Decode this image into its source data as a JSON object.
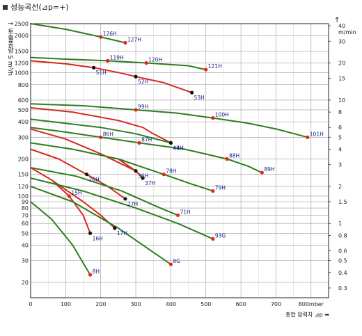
{
  "header": {
    "title": "성능곡선(⊿p=+)",
    "ylabel": "토출풍량 S m³/h",
    "y2label": "m/min",
    "xlabel": "총합 압력차 ⊿p ➡",
    "x_unit": "mmber"
  },
  "chart_data": {
    "type": "line",
    "xlim": [
      0,
      850
    ],
    "ylim": [
      15,
      2500
    ],
    "y_scale": "log",
    "grid": true,
    "x_ticks": [
      0,
      100,
      200,
      300,
      400,
      500,
      600,
      700,
      800
    ],
    "x_tick_labels": [
      "0",
      "100",
      "200",
      "300",
      "400",
      "500",
      "600",
      "700",
      "800mber"
    ],
    "y_ticks": [
      20,
      30,
      40,
      50,
      60,
      70,
      80,
      90,
      100,
      120,
      150,
      200,
      300,
      400,
      500,
      600,
      800,
      1000,
      1200,
      1500,
      2000,
      2500
    ],
    "y_tick_labels": [
      "20",
      "30",
      "40",
      "50",
      "60",
      "70",
      "80",
      "90",
      "100",
      "120",
      "150",
      "200",
      "300",
      "400",
      "500",
      "600",
      "800",
      "1000",
      "1200",
      "1500",
      "2000",
      "2500"
    ],
    "y2_ticks": [
      0.2,
      0.3,
      0.4,
      0.5,
      0.6,
      0.8,
      1,
      1.5,
      2,
      3,
      4,
      5,
      6,
      8,
      10,
      15,
      20,
      30,
      40
    ],
    "y2_tick_labels": [
      "0.2",
      "0.3",
      "0.4",
      "0.5",
      "0.6",
      "0.8",
      "1",
      "1.5",
      "2",
      "3",
      "4",
      "5",
      "6",
      "8",
      "10",
      "15",
      "20",
      "30",
      "40"
    ],
    "series": [
      {
        "name": "126H",
        "color": "#2e7d1e",
        "points": [
          [
            0,
            2500
          ],
          [
            100,
            2250
          ],
          [
            200,
            1950
          ]
        ],
        "marker": "red",
        "marker_at": [
          200,
          1950
        ]
      },
      {
        "name": "127H",
        "color": "#2e7d1e",
        "points": [
          [
            200,
            1950
          ],
          [
            270,
            1750
          ]
        ],
        "marker": "red",
        "marker_at": [
          270,
          1750
        ]
      },
      {
        "name": "119H",
        "color": "#2e7d1e",
        "points": [
          [
            0,
            1330
          ],
          [
            100,
            1290
          ],
          [
            220,
            1250
          ]
        ],
        "marker": "red",
        "marker_at": [
          220,
          1250
        ]
      },
      {
        "name": "120H",
        "color": "#2e7d1e",
        "points": [
          [
            220,
            1250
          ],
          [
            330,
            1200
          ]
        ],
        "marker": "red",
        "marker_at": [
          330,
          1200
        ]
      },
      {
        "name": "121H",
        "color": "#2e7d1e",
        "points": [
          [
            330,
            1200
          ],
          [
            450,
            1140
          ],
          [
            500,
            1060
          ]
        ],
        "marker": "red",
        "marker_at": [
          500,
          1060
        ]
      },
      {
        "name": "51H",
        "color": "#d42a1e",
        "points": [
          [
            0,
            1250
          ],
          [
            100,
            1180
          ],
          [
            180,
            1100
          ]
        ],
        "marker": "black",
        "marker_at": [
          180,
          1100
        ]
      },
      {
        "name": "52H",
        "color": "#d42a1e",
        "points": [
          [
            180,
            1100
          ],
          [
            260,
            990
          ],
          [
            300,
            930
          ]
        ],
        "marker": "black",
        "marker_at": [
          300,
          930
        ]
      },
      {
        "name": "53H",
        "color": "#d42a1e",
        "points": [
          [
            300,
            930
          ],
          [
            380,
            830
          ],
          [
            460,
            690
          ]
        ],
        "marker": "black",
        "marker_at": [
          460,
          690
        ]
      },
      {
        "name": "99H",
        "color": "#2e7d1e",
        "points": [
          [
            0,
            560
          ],
          [
            150,
            540
          ],
          [
            300,
            500
          ]
        ],
        "marker": "red",
        "marker_at": [
          300,
          500
        ]
      },
      {
        "name": "100H",
        "color": "#2e7d1e",
        "points": [
          [
            300,
            500
          ],
          [
            420,
            470
          ],
          [
            520,
            430
          ]
        ],
        "marker": "red",
        "marker_at": [
          520,
          430
        ]
      },
      {
        "name": "101H",
        "color": "#2e7d1e",
        "points": [
          [
            520,
            430
          ],
          [
            620,
            390
          ],
          [
            700,
            350
          ],
          [
            790,
            300
          ]
        ],
        "marker": "red",
        "marker_at": [
          790,
          300
        ]
      },
      {
        "name": "43H",
        "color": "#d42a1e",
        "points": [
          [
            0,
            520
          ],
          [
            120,
            480
          ],
          [
            250,
            410
          ],
          [
            320,
            360
          ],
          [
            350,
            320
          ],
          [
            400,
            270
          ]
        ],
        "marker": "black",
        "marker_at": [
          400,
          270
        ]
      },
      {
        "name": "44H",
        "color": "#2e7d1e",
        "points": [
          [
            0,
            420
          ],
          [
            200,
            360
          ],
          [
            300,
            320
          ],
          [
            400,
            270
          ]
        ],
        "marker": "black",
        "marker_at": [
          400,
          270
        ]
      },
      {
        "name": "86H",
        "color": "#2e7d1e",
        "points": [
          [
            0,
            360
          ],
          [
            100,
            330
          ],
          [
            200,
            300
          ]
        ],
        "marker": "red",
        "marker_at": [
          200,
          300
        ]
      },
      {
        "name": "87H",
        "color": "#2e7d1e",
        "points": [
          [
            200,
            300
          ],
          [
            310,
            270
          ]
        ],
        "marker": "red",
        "marker_at": [
          310,
          270
        ]
      },
      {
        "name": "88H",
        "color": "#2e7d1e",
        "points": [
          [
            310,
            270
          ],
          [
            440,
            240
          ],
          [
            560,
            200
          ]
        ],
        "marker": "red",
        "marker_at": [
          560,
          200
        ]
      },
      {
        "name": "89H",
        "color": "#2e7d1e",
        "points": [
          [
            560,
            200
          ],
          [
            620,
            175
          ],
          [
            660,
            155
          ]
        ],
        "marker": "red",
        "marker_at": [
          660,
          155
        ]
      },
      {
        "name": "36H",
        "color": "#d42a1e",
        "points": [
          [
            0,
            350
          ],
          [
            100,
            290
          ],
          [
            200,
            220
          ],
          [
            300,
            160
          ]
        ],
        "marker": "black",
        "marker_at": [
          300,
          160
        ]
      },
      {
        "name": "37H",
        "color": "#d42a1e",
        "points": [
          [
            250,
            200
          ],
          [
            300,
            160
          ],
          [
            320,
            140
          ]
        ],
        "marker": "black",
        "marker_at": [
          320,
          140
        ]
      },
      {
        "name": "78H",
        "color": "#2e7d1e",
        "points": [
          [
            0,
            270
          ],
          [
            120,
            240
          ],
          [
            250,
            200
          ],
          [
            380,
            150
          ]
        ],
        "marker": "red",
        "marker_at": [
          380,
          150
        ]
      },
      {
        "name": "79H",
        "color": "#2e7d1e",
        "points": [
          [
            380,
            150
          ],
          [
            460,
            125
          ],
          [
            520,
            110
          ]
        ],
        "marker": "red",
        "marker_at": [
          520,
          110
        ]
      },
      {
        "name": "26H",
        "color": "#d42a1e",
        "points": [
          [
            0,
            240
          ],
          [
            80,
            200
          ],
          [
            160,
            150
          ]
        ],
        "marker": "black",
        "marker_at": [
          160,
          150
        ]
      },
      {
        "name": "27H",
        "color": "#d42a1e",
        "points": [
          [
            160,
            150
          ],
          [
            220,
            120
          ],
          [
            270,
            95
          ]
        ],
        "marker": "black",
        "marker_at": [
          270,
          95
        ]
      },
      {
        "name": "71H",
        "color": "#2e7d1e",
        "points": [
          [
            0,
            170
          ],
          [
            130,
            145
          ],
          [
            260,
            110
          ],
          [
            370,
            80
          ],
          [
            420,
            70
          ]
        ],
        "marker": "red",
        "marker_at": [
          420,
          70
        ]
      },
      {
        "name": "15H",
        "color": "#d42a1e",
        "points": [
          [
            0,
            170
          ],
          [
            60,
            135
          ],
          [
            110,
            100
          ]
        ],
        "marker": "red",
        "marker_at": [
          110,
          100
        ]
      },
      {
        "name": "16H",
        "color": "#d42a1e",
        "points": [
          [
            110,
            100
          ],
          [
            150,
            70
          ],
          [
            170,
            50
          ]
        ],
        "marker": "black",
        "marker_at": [
          170,
          50
        ]
      },
      {
        "name": "17H",
        "color": "#d42a1e",
        "points": [
          [
            60,
            135
          ],
          [
            150,
            90
          ],
          [
            200,
            70
          ],
          [
            240,
            55
          ]
        ],
        "marker": "black",
        "marker_at": [
          240,
          55
        ]
      },
      {
        "name": "93G",
        "color": "#2e7d1e",
        "points": [
          [
            0,
            140
          ],
          [
            150,
            110
          ],
          [
            300,
            80
          ],
          [
            420,
            60
          ],
          [
            520,
            45
          ]
        ],
        "marker": "red",
        "marker_at": [
          520,
          45
        ]
      },
      {
        "name": "8G",
        "color": "#2e7d1e",
        "points": [
          [
            0,
            120
          ],
          [
            120,
            90
          ],
          [
            250,
            55
          ],
          [
            350,
            35
          ],
          [
            400,
            28
          ]
        ],
        "marker": "red",
        "marker_at": [
          400,
          28
        ]
      },
      {
        "name": "8H",
        "color": "#2e7d1e",
        "points": [
          [
            0,
            90
          ],
          [
            60,
            65
          ],
          [
            120,
            40
          ],
          [
            170,
            23
          ]
        ],
        "marker": "red",
        "marker_at": [
          170,
          23
        ]
      }
    ]
  }
}
